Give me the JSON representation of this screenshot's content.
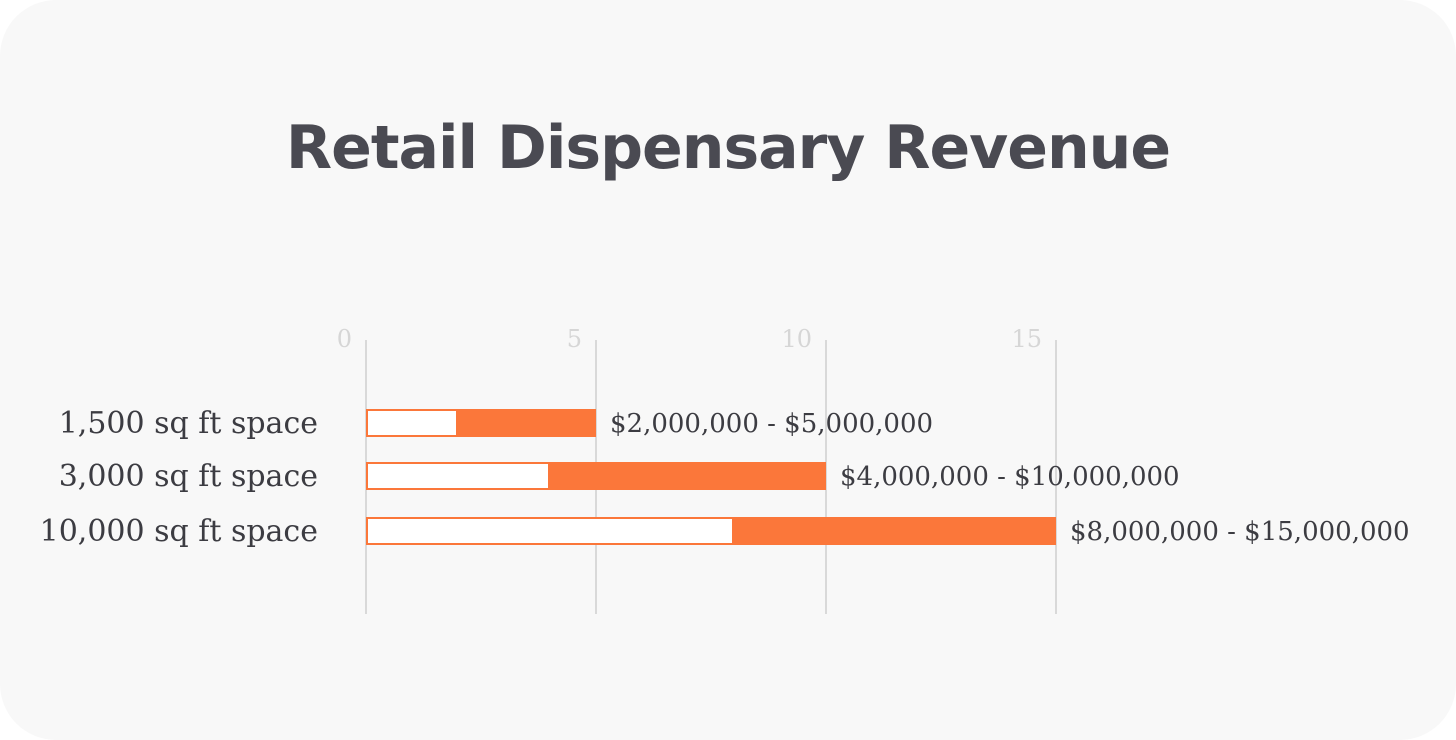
{
  "chart_data": {
    "type": "bar",
    "orientation": "horizontal",
    "stacked": true,
    "title": "Retail Dispensary Revenue",
    "xlabel": "",
    "ylabel": "",
    "xlim": [
      0,
      15
    ],
    "x_ticks": [
      "0",
      "5",
      "10",
      "15"
    ],
    "grid": true,
    "categories": [
      "1,500 sq ft space",
      "3,000 sq ft space",
      "10,000 sq ft space"
    ],
    "series": [
      {
        "values": [
          2,
          4,
          8
        ],
        "color": "#ffffff",
        "outline": "#fb773a"
      },
      {
        "values": [
          3,
          6,
          7
        ],
        "color": "#fb773a"
      }
    ],
    "data_labels": [
      "$2,000,000 - $5,000,000",
      "$4,000,000 - $10,000,000",
      "$8,000,000 - $15,000,000"
    ]
  }
}
